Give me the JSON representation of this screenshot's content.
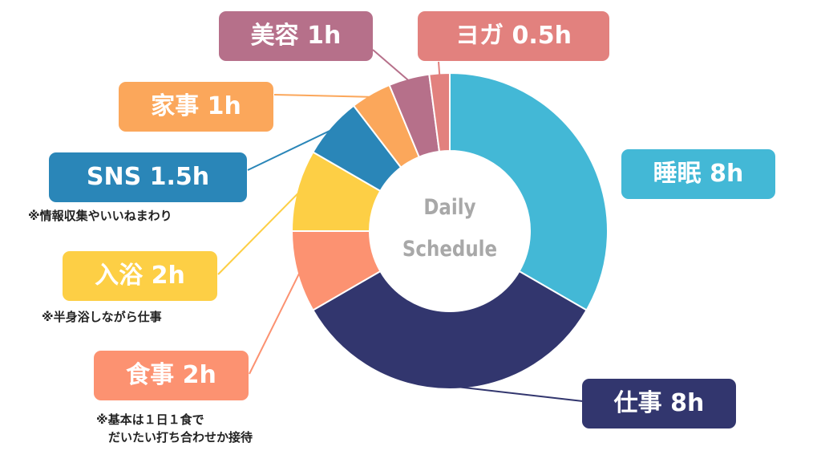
{
  "chart_data": {
    "type": "pie",
    "center_label": [
      "Daily",
      "Schedule"
    ],
    "slices": [
      {
        "label": "睡眠 8h",
        "value": 8,
        "color": "#43b8d6"
      },
      {
        "label": "仕事 8h",
        "value": 8,
        "color": "#32366e"
      },
      {
        "label": "食事 2h",
        "value": 2,
        "color": "#fc9271",
        "note": "※基本は１日１食で\n　だいたい打ち合わせか接待"
      },
      {
        "label": "入浴 2h",
        "value": 2,
        "color": "#fdcf45",
        "note": "※半身浴しながら仕事"
      },
      {
        "label": "SNS 1.5h",
        "value": 1.5,
        "color": "#2a86b8",
        "note": "※情報収集やいいねまわり"
      },
      {
        "label": "家事 1h",
        "value": 1,
        "color": "#fba75b"
      },
      {
        "label": "美容 1h",
        "value": 1,
        "color": "#b6708a"
      },
      {
        "label": "ヨガ 0.5h",
        "value": 0.5,
        "color": "#e2817e"
      }
    ]
  }
}
